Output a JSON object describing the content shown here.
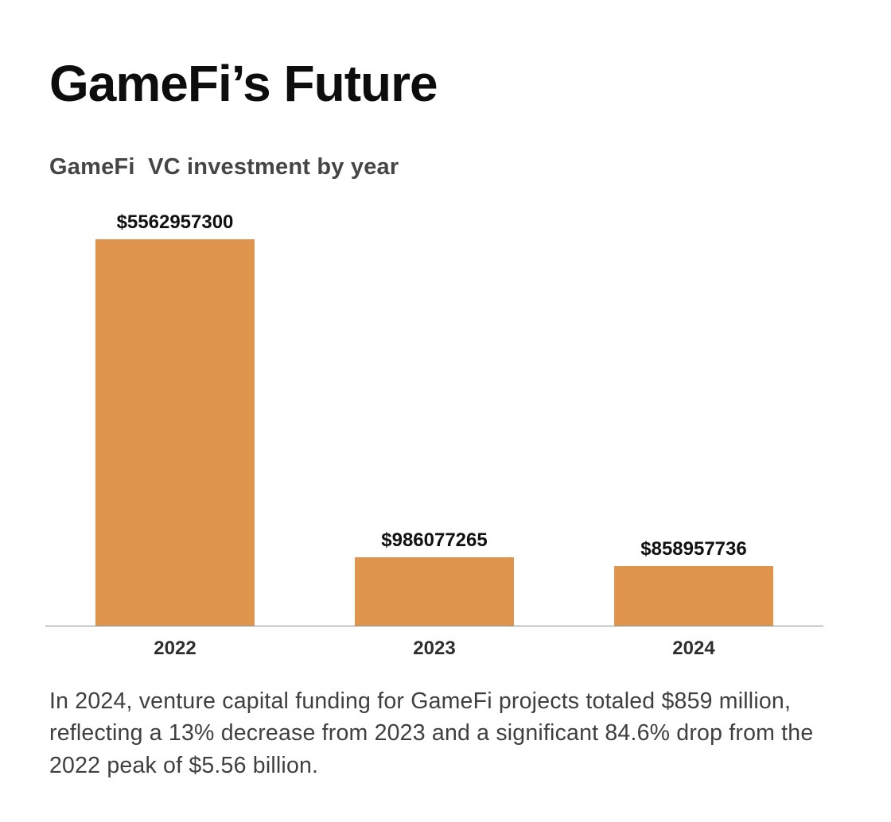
{
  "page": {
    "title": "GameFi’s Future",
    "caption": "In 2024, venture capital funding for GameFi projects totaled $859 million, reflecting a 13% decrease from 2023 and a significant 84.6% drop from the 2022 peak of $5.56 billion."
  },
  "chart_data": {
    "type": "bar",
    "title": "GameFi  VC investment by year",
    "categories": [
      "2022",
      "2023",
      "2024"
    ],
    "values": [
      5562957300,
      986077265,
      858957736
    ],
    "value_labels": [
      "$5562957300",
      "$986077265",
      "$858957736"
    ],
    "xlabel": "",
    "ylabel": "",
    "ylim": [
      0,
      5562957300
    ],
    "grid": false,
    "legend": false,
    "bar_color": "#E0954E",
    "axis_color": "#8e8e8e"
  }
}
